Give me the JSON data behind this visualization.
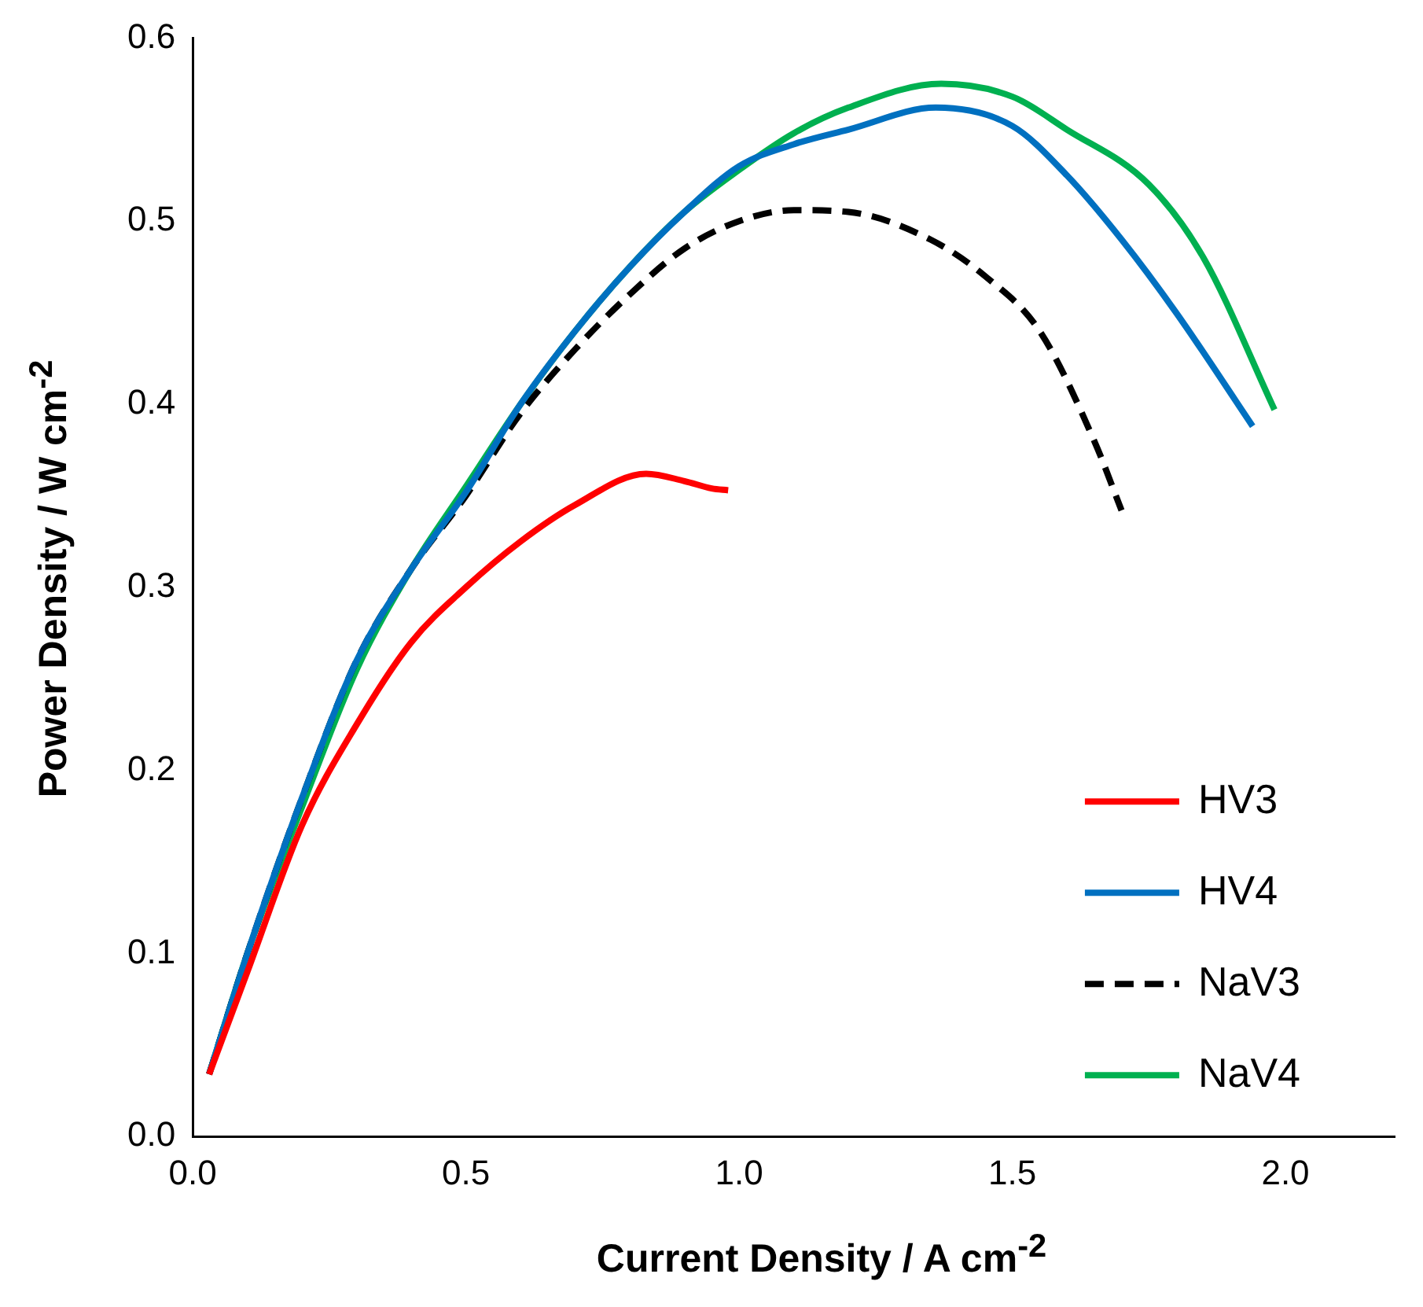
{
  "chart_data": {
    "type": "line",
    "xlabel": "Current Density / A cm$^{-2}$",
    "ylabel": "Power Density / W cm$^{-2}$",
    "xlim": [
      0,
      2.2
    ],
    "xticks": [
      {
        "value": 0,
        "label": "0.0"
      },
      0.5,
      {
        "value": 1,
        "label": "1.0"
      },
      1.5,
      {
        "value": 2,
        "label": "2.0"
      }
    ],
    "ylim": [
      0,
      0.6
    ],
    "yticks": [
      {
        "value": 0,
        "label": "0.0"
      },
      0.1,
      0.2,
      0.3,
      0.4,
      0.5,
      0.6
    ],
    "grid": false,
    "legend": "bottom right",
    "marker": "none",
    "series": [
      {
        "name": "HV3",
        "color": "#ff0000",
        "line_style": "solid",
        "x": [
          0.03,
          0.1,
          0.2,
          0.3,
          0.4,
          0.5,
          0.6,
          0.7,
          0.83,
          0.9,
          0.95,
          0.98
        ],
        "values": [
          0.034,
          0.09,
          0.17,
          0.225,
          0.27,
          0.3,
          0.325,
          0.345,
          0.362,
          0.358,
          0.354,
          0.353
        ]
      },
      {
        "name": "HV4",
        "color": "#0070c0",
        "line_style": "solid",
        "x": [
          0.03,
          0.1,
          0.2,
          0.3,
          0.4,
          0.5,
          0.6,
          0.7,
          0.8,
          0.9,
          1.0,
          1.1,
          1.2,
          1.36,
          1.5,
          1.6,
          1.7,
          1.8,
          1.94
        ],
        "values": [
          0.034,
          0.1,
          0.185,
          0.26,
          0.31,
          0.352,
          0.4,
          0.44,
          0.475,
          0.505,
          0.53,
          0.542,
          0.55,
          0.562,
          0.552,
          0.525,
          0.49,
          0.45,
          0.388
        ]
      },
      {
        "name": "NaV3",
        "color": "#000000",
        "line_style": "dashed",
        "x": [
          0.03,
          0.1,
          0.2,
          0.3,
          0.4,
          0.5,
          0.6,
          0.7,
          0.8,
          0.9,
          1.0,
          1.1,
          1.2,
          1.35,
          1.45,
          1.55,
          1.65,
          1.7
        ],
        "values": [
          0.034,
          0.1,
          0.185,
          0.26,
          0.31,
          0.35,
          0.395,
          0.43,
          0.46,
          0.485,
          0.5,
          0.506,
          0.505,
          0.49,
          0.47,
          0.44,
          0.38,
          0.342
        ]
      },
      {
        "name": "NaV4",
        "color": "#00b050",
        "line_style": "solid",
        "x": [
          0.03,
          0.1,
          0.2,
          0.3,
          0.4,
          0.5,
          0.6,
          0.7,
          0.8,
          0.9,
          1.0,
          1.1,
          1.2,
          1.37,
          1.5,
          1.6,
          1.75,
          1.85,
          1.98
        ],
        "values": [
          0.034,
          0.1,
          0.18,
          0.255,
          0.31,
          0.355,
          0.4,
          0.44,
          0.475,
          0.505,
          0.528,
          0.548,
          0.562,
          0.575,
          0.568,
          0.55,
          0.52,
          0.48,
          0.397
        ]
      }
    ]
  }
}
